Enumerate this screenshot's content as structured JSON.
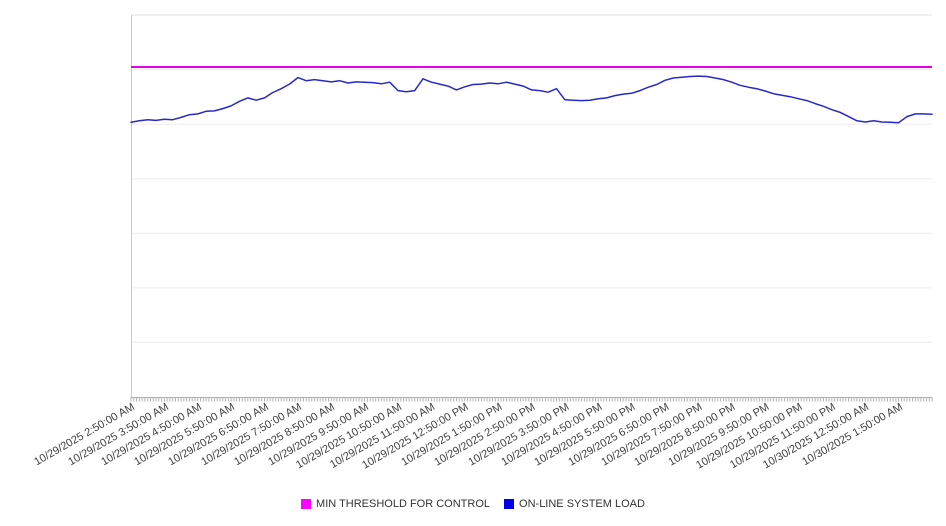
{
  "chart_data": {
    "type": "line",
    "title": "",
    "xlabel": "",
    "ylabel": "",
    "x_axis": {
      "labels": [
        "10/29/2025 2:50:00 AM",
        "10/29/2025 3:50:00 AM",
        "10/29/2025 4:50:00 AM",
        "10/29/2025 5:50:00 AM",
        "10/29/2025 6:50:00 AM",
        "10/29/2025 7:50:00 AM",
        "10/29/2025 8:50:00 AM",
        "10/29/2025 9:50:00 AM",
        "10/29/2025 10:50:00 AM",
        "10/29/2025 11:50:00 AM",
        "10/29/2025 12:50:00 PM",
        "10/29/2025 1:50:00 PM",
        "10/29/2025 2:50:00 PM",
        "10/29/2025 3:50:00 PM",
        "10/29/2025 4:50:00 PM",
        "10/29/2025 5:50:00 PM",
        "10/29/2025 6:50:00 PM",
        "10/29/2025 7:50:00 PM",
        "10/29/2025 8:50:00 PM",
        "10/29/2025 9:50:00 PM",
        "10/29/2025 10:50:00 PM",
        "10/29/2025 11:50:00 PM",
        "10/30/2025 12:50:00 AM",
        "10/30/2025 1:50:00 AM"
      ],
      "label_rotation_deg": -30,
      "minor_ticks_per_hour": 12
    },
    "y_axis": {
      "labels_visible": false,
      "scale_note": "no y-axis tick labels shown; series values expressed as percent of plot height",
      "ylim": [
        0,
        100
      ],
      "gridline_intervals": 7,
      "grid_on": true
    },
    "legend_position": "bottom-center",
    "series": [
      {
        "name": "MIN THRESHOLD FOR CONTROL",
        "style": "constant-horizontal-line",
        "value": 86.4,
        "color": "#e600e6",
        "legend_color": "#ff00ff"
      },
      {
        "name": "ON-LINE SYSTEM LOAD",
        "start": "10/29/2025 2:50:00 AM",
        "interval_minutes": 15,
        "color": "#2828c8",
        "legend_color": "#0000e6",
        "values": [
          71.9,
          72.3,
          72.6,
          72.4,
          72.7,
          72.6,
          73.2,
          73.9,
          74.1,
          74.8,
          74.9,
          75.5,
          76.2,
          77.4,
          78.3,
          77.7,
          78.3,
          79.7,
          80.7,
          81.9,
          83.6,
          82.8,
          83.1,
          82.8,
          82.5,
          82.8,
          82.2,
          82.5,
          82.4,
          82.3,
          82.0,
          82.4,
          80.2,
          79.9,
          80.2,
          83.3,
          82.4,
          81.9,
          81.4,
          80.4,
          81.2,
          81.8,
          81.9,
          82.2,
          82.0,
          82.4,
          81.9,
          81.4,
          80.4,
          80.2,
          79.8,
          80.7,
          77.8,
          77.7,
          77.6,
          77.7,
          78.1,
          78.3,
          78.9,
          79.3,
          79.5,
          80.2,
          81.1,
          81.8,
          82.9,
          83.5,
          83.7,
          83.9,
          84.0,
          83.9,
          83.5,
          83.1,
          82.4,
          81.6,
          81.1,
          80.7,
          80.1,
          79.4,
          79.0,
          78.6,
          78.1,
          77.6,
          76.8,
          76.1,
          75.2,
          74.5,
          73.4,
          72.3,
          72.0,
          72.3,
          72.0,
          71.9,
          71.8,
          73.4,
          74.1,
          74.1,
          74.0
        ]
      }
    ],
    "colors": {
      "gridline": "#ececec",
      "plot_top_border": "#e0e0e0",
      "left_axis_line": "#c8c8c8",
      "bottom_axis_line": "#b0b0b0",
      "axis_label_text": "#404040",
      "legend_text": "#333333",
      "background": "#ffffff"
    }
  }
}
